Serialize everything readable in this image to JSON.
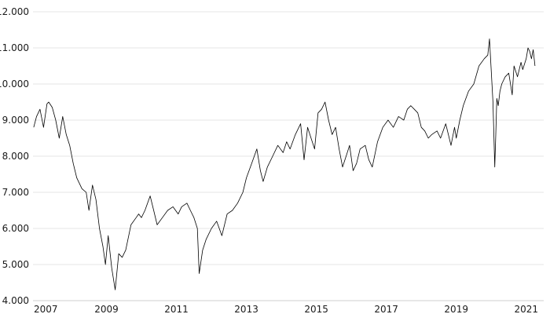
{
  "chart_data": {
    "type": "line",
    "title": "",
    "xlabel": "",
    "ylabel": "",
    "x_range": [
      2006.9,
      2021.5
    ],
    "ylim": [
      4000,
      12000
    ],
    "y_ticks": [
      4000,
      5000,
      6000,
      7000,
      8000,
      9000,
      10000,
      11000,
      12000
    ],
    "y_tick_labels": [
      "4.000",
      "5.000",
      "6.000",
      "7.000",
      "8.000",
      "9.000",
      "10.000",
      "11.000",
      "12.000"
    ],
    "x_ticks": [
      2007,
      2009,
      2011,
      2013,
      2015,
      2017,
      2019,
      2021
    ],
    "x_tick_labels": [
      "2007",
      "2009",
      "2011",
      "2013",
      "2015",
      "2017",
      "2019",
      "2021"
    ],
    "grid": "horizontal",
    "legend": "none",
    "colors": {
      "line": "#000000",
      "grid": "#e6e6e6",
      "text": "#1a1a1a"
    },
    "series": [
      {
        "x": [
          2006.92,
          2007.0,
          2007.1,
          2007.2,
          2007.3,
          2007.35,
          2007.45,
          2007.55,
          2007.65,
          2007.75,
          2007.85,
          2007.95,
          2008.05,
          2008.15,
          2008.3,
          2008.42,
          2008.5,
          2008.6,
          2008.7,
          2008.8,
          2008.9,
          2008.97,
          2009.05,
          2009.15,
          2009.25,
          2009.35,
          2009.45,
          2009.55,
          2009.7,
          2009.85,
          2009.92,
          2010.0,
          2010.1,
          2010.25,
          2010.35,
          2010.45,
          2010.6,
          2010.75,
          2010.9,
          2011.05,
          2011.15,
          2011.3,
          2011.4,
          2011.5,
          2011.6,
          2011.65,
          2011.75,
          2011.85,
          2012.0,
          2012.15,
          2012.3,
          2012.45,
          2012.6,
          2012.75,
          2012.9,
          2013.0,
          2013.15,
          2013.3,
          2013.4,
          2013.48,
          2013.6,
          2013.75,
          2013.9,
          2014.05,
          2014.15,
          2014.25,
          2014.4,
          2014.55,
          2014.65,
          2014.75,
          2014.85,
          2014.95,
          2015.05,
          2015.15,
          2015.25,
          2015.35,
          2015.45,
          2015.55,
          2015.65,
          2015.75,
          2015.85,
          2015.95,
          2016.05,
          2016.15,
          2016.25,
          2016.4,
          2016.5,
          2016.6,
          2016.75,
          2016.9,
          2017.05,
          2017.2,
          2017.35,
          2017.5,
          2017.6,
          2017.7,
          2017.8,
          2017.9,
          2018.0,
          2018.1,
          2018.2,
          2018.3,
          2018.45,
          2018.55,
          2018.7,
          2018.85,
          2018.95,
          2019.0,
          2019.1,
          2019.2,
          2019.35,
          2019.5,
          2019.65,
          2019.8,
          2019.9,
          2019.95,
          2020.05,
          2020.1,
          2020.13,
          2020.16,
          2020.2,
          2020.25,
          2020.3,
          2020.4,
          2020.5,
          2020.6,
          2020.65,
          2020.75,
          2020.85,
          2020.9,
          2021.0,
          2021.05,
          2021.1,
          2021.15,
          2021.2,
          2021.25
        ],
        "y": [
          8800,
          9100,
          9300,
          8800,
          9450,
          9500,
          9350,
          9000,
          8500,
          9100,
          8600,
          8300,
          7800,
          7400,
          7100,
          7000,
          6500,
          7200,
          6800,
          6000,
          5500,
          5000,
          5800,
          4900,
          4300,
          5300,
          5200,
          5400,
          6100,
          6300,
          6400,
          6300,
          6500,
          6900,
          6500,
          6100,
          6300,
          6500,
          6600,
          6400,
          6600,
          6700,
          6500,
          6300,
          6000,
          4750,
          5400,
          5700,
          6000,
          6200,
          5800,
          6400,
          6500,
          6700,
          7000,
          7400,
          7800,
          8200,
          7600,
          7300,
          7700,
          8000,
          8300,
          8100,
          8400,
          8200,
          8600,
          8900,
          7900,
          8800,
          8500,
          8200,
          9200,
          9300,
          9500,
          9000,
          8600,
          8800,
          8200,
          7700,
          8000,
          8300,
          7600,
          7800,
          8200,
          8300,
          7900,
          7700,
          8400,
          8800,
          9000,
          8800,
          9100,
          9000,
          9300,
          9400,
          9300,
          9200,
          8800,
          8700,
          8500,
          8600,
          8700,
          8500,
          8900,
          8300,
          8800,
          8500,
          9000,
          9400,
          9800,
          10000,
          10500,
          10700,
          10800,
          11250,
          9500,
          7700,
          8600,
          9600,
          9400,
          9800,
          10000,
          10200,
          10300,
          9700,
          10500,
          10200,
          10600,
          10400,
          10700,
          11000,
          10900,
          10700,
          10950,
          10500
        ]
      }
    ]
  }
}
